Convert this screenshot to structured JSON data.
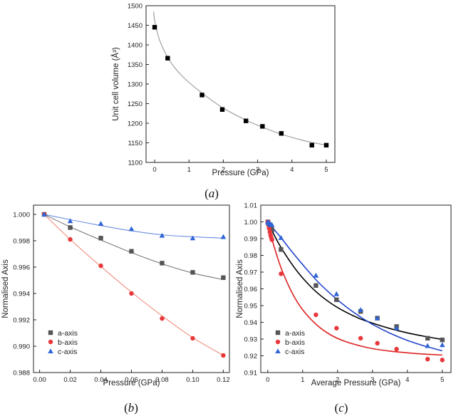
{
  "chart_data": [
    {
      "id": "a",
      "type": "scatter",
      "panel_label": "a",
      "xlabel": "Pressure (GPa)",
      "ylabel": "Unit cell volume (Å³)",
      "xlim": [
        -0.25,
        5.25
      ],
      "ylim": [
        1100,
        1500
      ],
      "xticks": [
        0,
        1,
        2,
        3,
        4,
        5
      ],
      "yticks": [
        1100,
        1150,
        1200,
        1250,
        1300,
        1350,
        1400,
        1450,
        1500
      ],
      "series": [
        {
          "color": "#000000",
          "marker": "square",
          "x": [
            0.0,
            0.38,
            1.38,
            1.97,
            2.66,
            3.14,
            3.69,
            4.58,
            5.0
          ],
          "y": [
            1445,
            1366,
            1272,
            1235,
            1206,
            1192,
            1174,
            1144,
            1144
          ]
        }
      ],
      "fit": {
        "color": "#999999",
        "x": [
          -0.03,
          0.0,
          0.1,
          0.2,
          0.38,
          0.6,
          0.9,
          1.38,
          1.97,
          2.66,
          3.14,
          3.69,
          4.2,
          4.58,
          5.0
        ],
        "y": [
          1485,
          1462,
          1424,
          1400,
          1368,
          1340,
          1312,
          1277,
          1240,
          1208,
          1190,
          1172,
          1159,
          1151,
          1144
        ]
      }
    },
    {
      "id": "b",
      "type": "scatter",
      "panel_label": "b",
      "xlabel": "Pressure (GPa)",
      "ylabel": "Normalised Axis",
      "xlim": [
        -0.004,
        0.124
      ],
      "ylim": [
        0.988,
        1.0007
      ],
      "xticks": [
        "0.00",
        "0.02",
        "0.04",
        "0.06",
        "0.08",
        "0.10",
        "0.12"
      ],
      "yticks": [
        "0.988",
        "0.990",
        "0.992",
        "0.994",
        "0.996",
        "0.998",
        "1.000"
      ],
      "legend": {
        "position": "bottom-left"
      },
      "series": [
        {
          "name": "a-axis",
          "color": "#555555",
          "marker": "square",
          "x": [
            0.003,
            0.02,
            0.04,
            0.06,
            0.08,
            0.1,
            0.12
          ],
          "y": [
            1.0,
            0.999,
            0.9982,
            0.9972,
            0.9963,
            0.9956,
            0.9952
          ]
        },
        {
          "name": "b-axis",
          "color": "#e8373a",
          "marker": "circle",
          "x": [
            0.003,
            0.02,
            0.04,
            0.06,
            0.08,
            0.1,
            0.12
          ],
          "y": [
            1.0,
            0.9981,
            0.9961,
            0.994,
            0.9921,
            0.9906,
            0.9893
          ]
        },
        {
          "name": "c-axis",
          "color": "#2f64d6",
          "marker": "triangle",
          "x": [
            0.003,
            0.02,
            0.04,
            0.06,
            0.08,
            0.1,
            0.12
          ],
          "y": [
            1.0,
            0.9995,
            0.9993,
            0.9989,
            0.9984,
            0.9982,
            0.9983
          ]
        }
      ],
      "fits": [
        {
          "color": "#777777",
          "x": [
            0.003,
            0.02,
            0.04,
            0.06,
            0.08,
            0.1,
            0.12
          ],
          "y": [
            1.0,
            0.99905,
            0.99805,
            0.9971,
            0.99625,
            0.99555,
            0.99505
          ]
        },
        {
          "color": "#f08a7a",
          "x": [
            0.003,
            0.02,
            0.04,
            0.06,
            0.08,
            0.1,
            0.12
          ],
          "y": [
            1.0,
            0.9981,
            0.99605,
            0.9941,
            0.9923,
            0.99065,
            0.9893
          ]
        },
        {
          "color": "#6b8fe0",
          "x": [
            0.003,
            0.02,
            0.04,
            0.06,
            0.08,
            0.1,
            0.12
          ],
          "y": [
            1.0,
            0.9996,
            0.99915,
            0.99875,
            0.99845,
            0.9983,
            0.9982
          ]
        }
      ]
    },
    {
      "id": "c",
      "type": "scatter",
      "panel_label": "c",
      "xlabel": "Average Pressure (GPa)",
      "ylabel": "Normalised Axis",
      "xlim": [
        -0.2,
        5.25
      ],
      "ylim": [
        0.91,
        1.01
      ],
      "xticks": [
        0,
        1,
        2,
        3,
        4,
        5
      ],
      "yticks": [
        "0.91",
        "0.92",
        "0.93",
        "0.94",
        "0.95",
        "0.96",
        "0.97",
        "0.98",
        "0.99",
        "1.00",
        "1.01"
      ],
      "legend": {
        "position": "bottom-left"
      },
      "series": [
        {
          "name": "a-axis",
          "color": "#555555",
          "marker": "square",
          "x": [
            0.003,
            0.02,
            0.04,
            0.06,
            0.08,
            0.1,
            0.12,
            0.38,
            1.38,
            1.97,
            2.66,
            3.14,
            3.69,
            4.58,
            5.0
          ],
          "y": [
            1.0,
            0.999,
            0.9982,
            0.9972,
            0.9963,
            0.9956,
            0.9952,
            0.9835,
            0.962,
            0.9535,
            0.9465,
            0.9425,
            0.9375,
            0.9305,
            0.9295
          ]
        },
        {
          "name": "b-axis",
          "color": "#e8373a",
          "marker": "circle",
          "x": [
            0.003,
            0.02,
            0.04,
            0.06,
            0.08,
            0.1,
            0.12,
            0.38,
            1.38,
            1.97,
            2.66,
            3.14,
            3.69,
            4.58,
            5.0
          ],
          "y": [
            1.0,
            0.9981,
            0.9961,
            0.994,
            0.9921,
            0.9906,
            0.9893,
            0.969,
            0.9445,
            0.9365,
            0.9305,
            0.9275,
            0.924,
            0.918,
            0.9175
          ]
        },
        {
          "name": "c-axis",
          "color": "#2f64d6",
          "marker": "triangle",
          "x": [
            0.003,
            0.02,
            0.04,
            0.06,
            0.08,
            0.1,
            0.12,
            0.38,
            1.38,
            1.97,
            2.66,
            3.14,
            3.69,
            4.58,
            5.0
          ],
          "y": [
            1.0,
            0.9995,
            0.9993,
            0.9989,
            0.9984,
            0.9982,
            0.9983,
            0.9905,
            0.968,
            0.957,
            0.9475,
            0.9425,
            0.9365,
            0.926,
            0.9265
          ]
        }
      ],
      "fits": [
        {
          "color": "#000000",
          "x": [
            0.0,
            0.2,
            0.4,
            0.7,
            1.0,
            1.4,
            1.8,
            2.2,
            2.6,
            3.0,
            3.5,
            4.0,
            4.5,
            5.0
          ],
          "y": [
            1.0,
            0.9915,
            0.984,
            0.9745,
            0.9665,
            0.958,
            0.9515,
            0.9465,
            0.9425,
            0.9395,
            0.9363,
            0.9337,
            0.9316,
            0.9298
          ]
        },
        {
          "color": "#dd2222",
          "x": [
            0.0,
            0.1,
            0.2,
            0.4,
            0.7,
            1.0,
            1.4,
            1.8,
            2.2,
            2.6,
            3.0,
            3.5,
            4.0,
            4.5,
            5.0
          ],
          "y": [
            1.0,
            0.9915,
            0.984,
            0.9715,
            0.9575,
            0.9475,
            0.9385,
            0.9325,
            0.9287,
            0.9262,
            0.9243,
            0.9228,
            0.9218,
            0.921,
            0.9205
          ]
        },
        {
          "color": "#2244cc",
          "x": [
            0.0,
            0.2,
            0.4,
            0.7,
            1.0,
            1.4,
            1.8,
            2.2,
            2.6,
            3.0,
            3.5,
            4.0,
            4.5,
            5.0
          ],
          "y": [
            1.0,
            0.995,
            0.99,
            0.982,
            0.9745,
            0.965,
            0.957,
            0.95,
            0.944,
            0.9388,
            0.9335,
            0.9292,
            0.9258,
            0.923
          ]
        }
      ]
    }
  ]
}
